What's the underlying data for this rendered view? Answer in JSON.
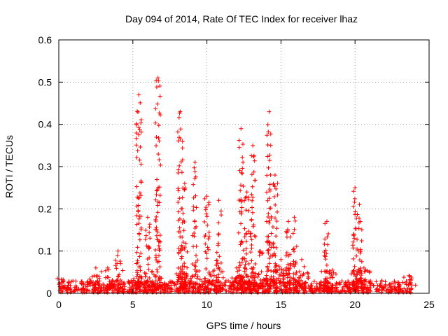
{
  "chart_data": {
    "type": "scatter",
    "title": "Day 094 of 2014, Rate Of TEC Index for receiver lhaz",
    "xlabel": "GPS time / hours",
    "ylabel": "ROTI / TECUs",
    "xlim": [
      0,
      25
    ],
    "ylim": [
      0,
      0.6
    ],
    "xticks": [
      0,
      5,
      10,
      15,
      20,
      25
    ],
    "yticks": [
      0,
      0.1,
      0.2,
      0.3,
      0.4,
      0.5,
      0.6
    ],
    "xtick_labels": [
      "0",
      "5",
      "10",
      "15",
      "20",
      "25"
    ],
    "ytick_labels": [
      "0",
      "0.1",
      "0.2",
      "0.3",
      "0.4",
      "0.5",
      "0.6"
    ],
    "grid": true,
    "marker": "plus",
    "color": "#ff0000",
    "background": {
      "x_range": [
        0,
        23.8
      ],
      "y_range": [
        0.002,
        0.03
      ]
    },
    "bursts": [
      {
        "x": 0.3,
        "peak": 0.03
      },
      {
        "x": 2.5,
        "peak": 0.06
      },
      {
        "x": 3.3,
        "peak": 0.06
      },
      {
        "x": 4.0,
        "peak": 0.1
      },
      {
        "x": 5.4,
        "peak": 0.47
      },
      {
        "x": 6.0,
        "peak": 0.18
      },
      {
        "x": 6.7,
        "peak": 0.51
      },
      {
        "x": 8.2,
        "peak": 0.43
      },
      {
        "x": 8.5,
        "peak": 0.26
      },
      {
        "x": 9.2,
        "peak": 0.31
      },
      {
        "x": 10.0,
        "peak": 0.23
      },
      {
        "x": 10.8,
        "peak": 0.22
      },
      {
        "x": 12.0,
        "peak": 0.06
      },
      {
        "x": 12.3,
        "peak": 0.39
      },
      {
        "x": 12.7,
        "peak": 0.24
      },
      {
        "x": 13.1,
        "peak": 0.35
      },
      {
        "x": 13.6,
        "peak": 0.1
      },
      {
        "x": 14.2,
        "peak": 0.43
      },
      {
        "x": 14.6,
        "peak": 0.28
      },
      {
        "x": 15.0,
        "peak": 0.08
      },
      {
        "x": 15.5,
        "peak": 0.17
      },
      {
        "x": 15.9,
        "peak": 0.18
      },
      {
        "x": 16.4,
        "peak": 0.08
      },
      {
        "x": 18.1,
        "peak": 0.17
      },
      {
        "x": 18.3,
        "peak": 0.05
      },
      {
        "x": 20.0,
        "peak": 0.25
      },
      {
        "x": 20.3,
        "peak": 0.21
      },
      {
        "x": 20.6,
        "peak": 0.06
      },
      {
        "x": 23.7,
        "peak": 0.04
      }
    ]
  }
}
